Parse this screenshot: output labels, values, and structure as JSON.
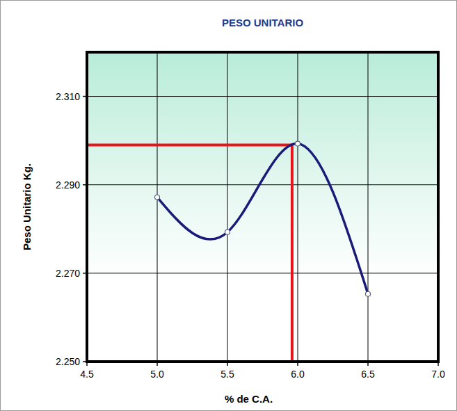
{
  "chart_data": {
    "type": "line",
    "title": "PESO UNITARIO",
    "x_label": "% de C.A.",
    "y_label": "Peso Unitario Kg.",
    "x": [
      5.0,
      5.5,
      6.0,
      6.5
    ],
    "values": [
      2.2872,
      2.2793,
      2.2993,
      2.2653
    ],
    "color": "#1a1a78",
    "marker": "circle",
    "line_style": "solid",
    "xlim": [
      4.5,
      7.0
    ],
    "xticks": [
      4.5,
      {
        "value": 5.0,
        "label": "5.0"
      },
      5.5,
      {
        "value": 6.0,
        "label": "6.0"
      },
      6.5,
      {
        "value": 7.0,
        "label": "7.0"
      }
    ],
    "ylim": [
      2.25,
      2.32
    ],
    "yticks": [
      {
        "value": 2.25,
        "label": "2.250"
      },
      {
        "value": 2.27,
        "label": "2.270"
      },
      {
        "value": 2.29,
        "label": "2.290"
      },
      {
        "value": 2.31,
        "label": "2.310"
      }
    ],
    "grid": true,
    "reference_lines": {
      "x": 5.96,
      "y": 2.299
    }
  }
}
